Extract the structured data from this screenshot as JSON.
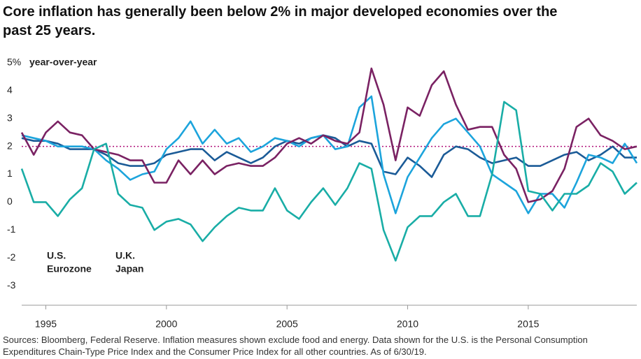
{
  "chart_data": {
    "type": "line",
    "title": "Core inflation has generally been below 2% in major developed economies over the past 25 years.",
    "y_label": "year-over-year",
    "source": "Sources: Bloomberg, Federal Reserve. Inflation measures shown exclude food and energy. Data shown for the U.S. is the Personal Consumption Expenditures Chain-Type Price Index and the Consumer Price Index for all other countries. As of 6/30/19.",
    "x": [
      1994,
      1994.5,
      1995,
      1995.5,
      1996,
      1996.5,
      1997,
      1997.5,
      1998,
      1998.5,
      1999,
      1999.5,
      2000,
      2000.5,
      2001,
      2001.5,
      2002,
      2002.5,
      2003,
      2003.5,
      2004,
      2004.5,
      2005,
      2005.5,
      2006,
      2006.5,
      2007,
      2007.5,
      2008,
      2008.5,
      2009,
      2009.5,
      2010,
      2010.5,
      2011,
      2011.5,
      2012,
      2012.5,
      2013,
      2013.5,
      2014,
      2014.5,
      2015,
      2015.5,
      2016,
      2016.5,
      2017,
      2017.5,
      2018,
      2018.5,
      2019,
      2019.5
    ],
    "series": [
      {
        "name": "U.S.",
        "color": "#1b5b97",
        "values": [
          2.3,
          2.2,
          2.2,
          2.1,
          1.9,
          1.9,
          1.9,
          1.7,
          1.4,
          1.3,
          1.3,
          1.4,
          1.7,
          1.8,
          1.9,
          1.9,
          1.5,
          1.8,
          1.6,
          1.4,
          1.6,
          2.0,
          2.2,
          2.1,
          2.3,
          2.4,
          2.3,
          2.0,
          2.2,
          2.1,
          1.1,
          1.0,
          1.6,
          1.3,
          0.9,
          1.7,
          2.0,
          1.9,
          1.6,
          1.4,
          1.5,
          1.6,
          1.3,
          1.3,
          1.5,
          1.7,
          1.8,
          1.5,
          1.7,
          2.0,
          1.6,
          1.6
        ]
      },
      {
        "name": "Eurozone",
        "color": "#1ca4dc",
        "values": [
          2.4,
          2.3,
          2.2,
          2.0,
          2.0,
          2.0,
          1.9,
          1.5,
          1.2,
          0.8,
          1.0,
          1.1,
          1.9,
          2.3,
          2.9,
          2.1,
          2.6,
          2.1,
          2.3,
          1.8,
          2.0,
          2.3,
          2.2,
          2.0,
          2.3,
          2.4,
          1.9,
          2.0,
          3.4,
          3.8,
          1.0,
          -0.4,
          0.9,
          1.6,
          2.3,
          2.8,
          3.0,
          2.5,
          2.0,
          1.0,
          0.7,
          0.4,
          -0.4,
          0.3,
          0.3,
          -0.2,
          0.7,
          1.7,
          1.6,
          1.4,
          2.1,
          1.4
        ]
      },
      {
        "name": "U.K.",
        "color": "#7a2263",
        "values": [
          2.5,
          1.7,
          2.5,
          2.9,
          2.5,
          2.4,
          1.9,
          1.8,
          1.7,
          1.5,
          1.5,
          0.7,
          0.7,
          1.5,
          1.0,
          1.5,
          1.0,
          1.3,
          1.4,
          1.3,
          1.3,
          1.6,
          2.1,
          2.3,
          2.1,
          2.4,
          2.2,
          2.1,
          2.5,
          4.8,
          3.5,
          1.5,
          3.4,
          3.1,
          4.2,
          4.7,
          3.5,
          2.6,
          2.7,
          2.7,
          1.7,
          1.2,
          0.0,
          0.1,
          0.4,
          1.2,
          2.7,
          3.0,
          2.4,
          2.2,
          1.9,
          2.0
        ]
      },
      {
        "name": "Japan",
        "color": "#19ada6",
        "values": [
          1.2,
          0.0,
          0.0,
          -0.5,
          0.1,
          0.5,
          1.9,
          2.1,
          0.3,
          -0.1,
          -0.2,
          -1.0,
          -0.7,
          -0.6,
          -0.8,
          -1.4,
          -0.9,
          -0.5,
          -0.2,
          -0.3,
          -0.3,
          0.5,
          -0.3,
          -0.6,
          0.0,
          0.5,
          -0.1,
          0.5,
          1.4,
          1.2,
          -1.0,
          -2.1,
          -0.9,
          -0.5,
          -0.5,
          0.0,
          0.3,
          -0.5,
          -0.5,
          1.0,
          3.6,
          3.3,
          0.4,
          0.3,
          -0.3,
          0.3,
          0.3,
          0.6,
          1.4,
          1.1,
          0.3,
          0.7
        ]
      }
    ],
    "reference_line": 2,
    "reference_color": "#b0107a",
    "xlim": [
      1994,
      2019.5
    ],
    "xticks": [
      1995,
      2000,
      2005,
      2010,
      2015
    ],
    "ylim": [
      -3.7,
      5
    ],
    "yticks": [
      {
        "value": 5,
        "label": "5%"
      },
      4,
      3,
      2,
      1,
      0,
      -1,
      -2,
      -3
    ],
    "grid": false
  }
}
